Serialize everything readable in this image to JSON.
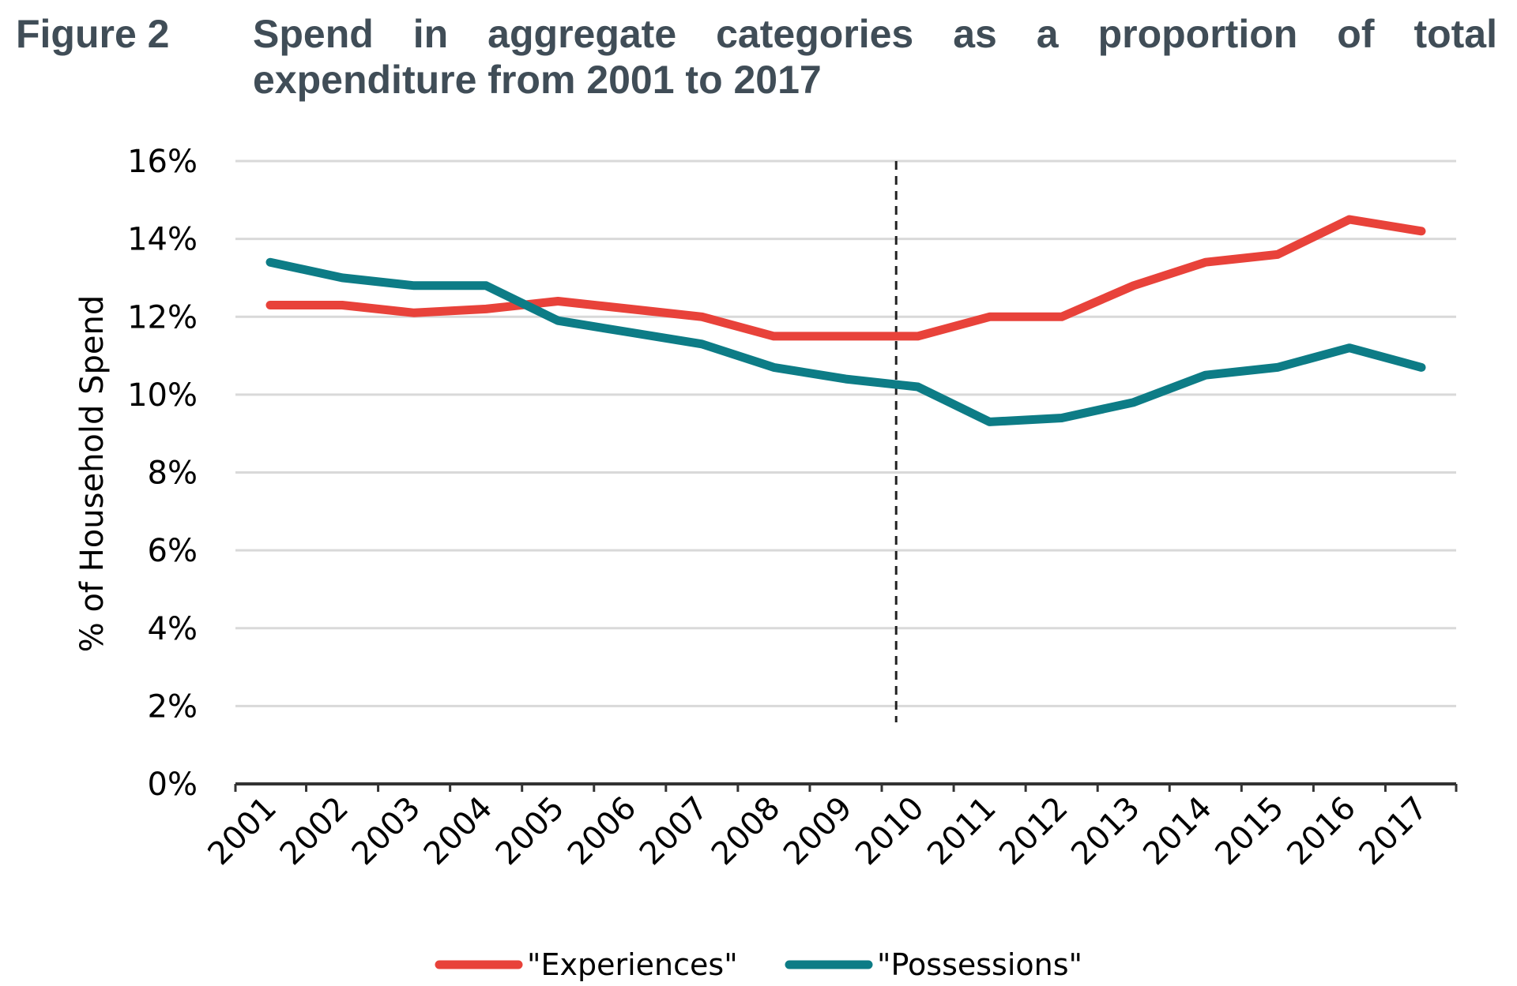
{
  "figure": {
    "label": "Figure 2",
    "title": "Spend in aggregate categories as a proportion of total expenditure from 2001 to 2017"
  },
  "chart_data": {
    "type": "line",
    "title": "Spend in aggregate categories as a proportion of total expenditure from 2001 to 2017",
    "xlabel": "",
    "ylabel": "% of Household Spend",
    "categories": [
      "2001",
      "2002",
      "2003",
      "2004",
      "2005",
      "2006",
      "2007",
      "2008",
      "2009",
      "2010",
      "2011",
      "2012",
      "2013",
      "2014",
      "2015",
      "2016",
      "2017"
    ],
    "ylim": [
      0,
      16
    ],
    "yticks": [
      "0%",
      "2%",
      "4%",
      "6%",
      "8%",
      "10%",
      "12%",
      "14%",
      "16%"
    ],
    "grid": true,
    "legend_position": "bottom",
    "reference_line": {
      "type": "dashed",
      "position": "between 2009 and 2010"
    },
    "series": [
      {
        "name": "\"Experiences\"",
        "color": "#e8423a",
        "values": [
          12.3,
          12.3,
          12.1,
          12.2,
          12.4,
          12.2,
          12.0,
          11.5,
          11.5,
          11.5,
          12.0,
          12.0,
          12.8,
          13.4,
          13.6,
          14.5,
          14.2
        ]
      },
      {
        "name": "\"Possessions\"",
        "color": "#0d7c86",
        "values": [
          13.4,
          13.0,
          12.8,
          12.8,
          11.9,
          11.6,
          11.3,
          10.7,
          10.4,
          10.2,
          9.3,
          9.4,
          9.8,
          10.5,
          10.7,
          11.2,
          10.7
        ]
      }
    ]
  }
}
